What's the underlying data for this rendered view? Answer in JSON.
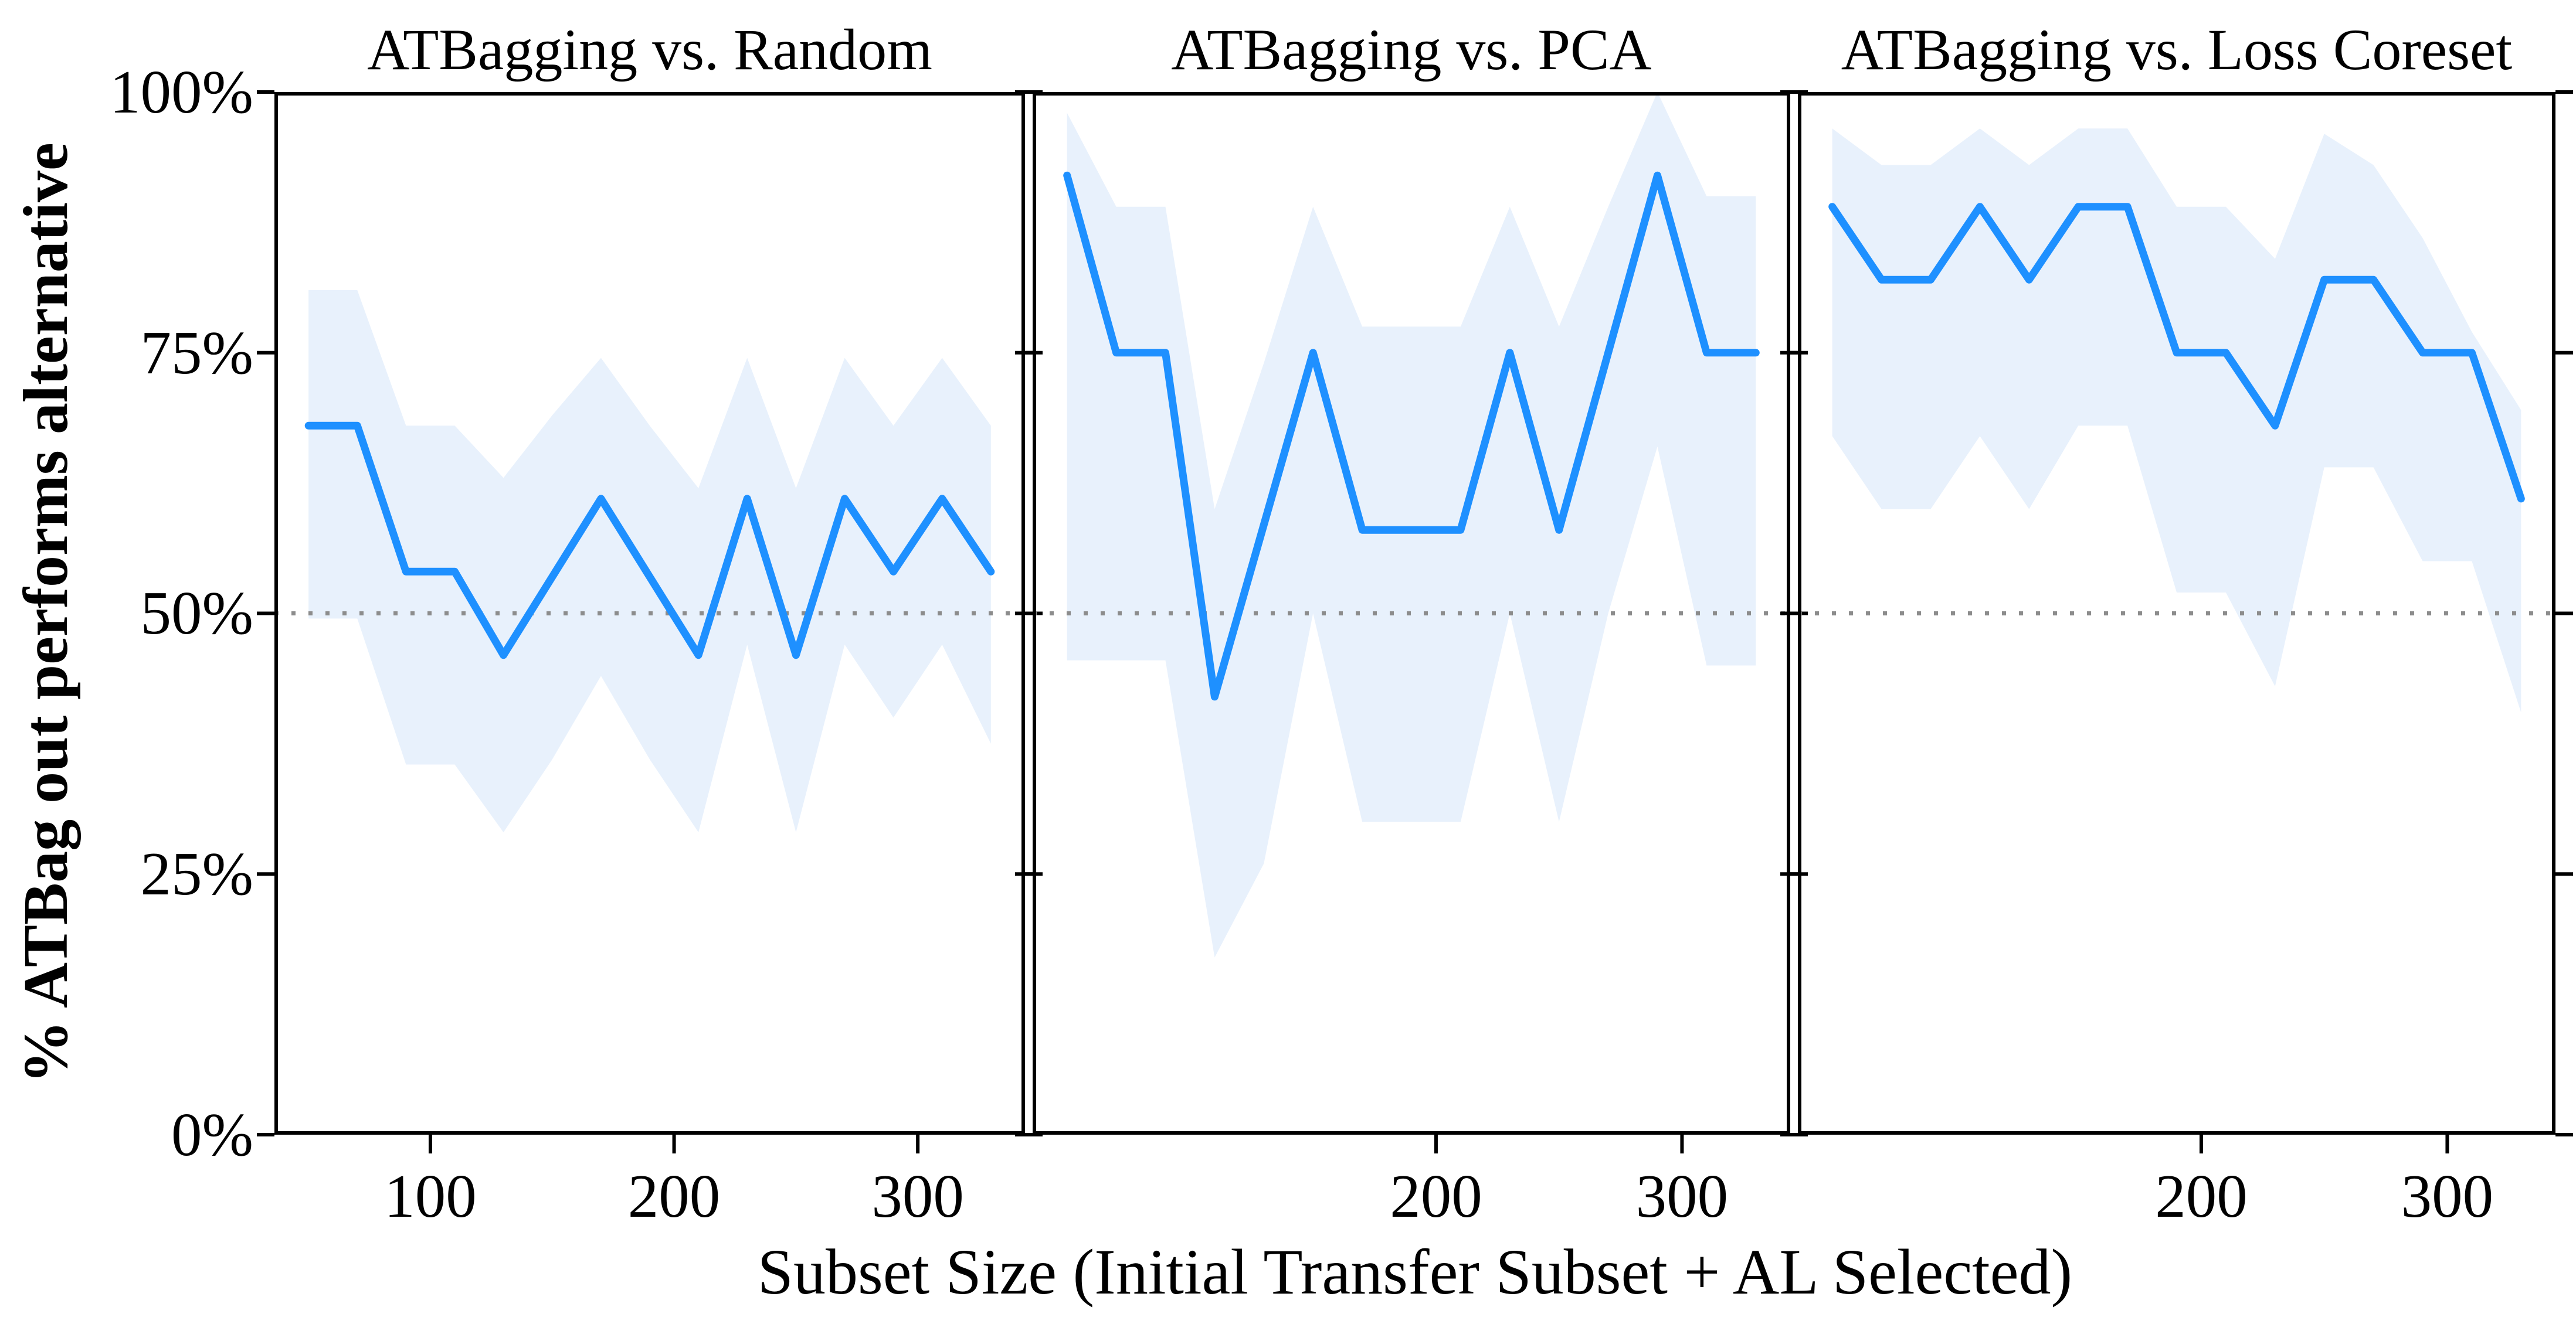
{
  "figure": {
    "y_axis_label": "% ATBag out performs alternative",
    "x_axis_label": "Subset Size (Initial Transfer Subset + AL Selected)",
    "y_tick_labels": [
      "100%",
      "75%",
      "50%",
      "25%",
      "0%"
    ],
    "y_tick_values": [
      100,
      75,
      50,
      25,
      0
    ],
    "reference_line_value": 50,
    "colors": {
      "line": "#1E90FF",
      "band": "#E8F1FC",
      "reference": "#8C8C8C",
      "axis": "#000000",
      "background": "#FFFFFF"
    }
  },
  "chart_data": [
    {
      "type": "line",
      "title": "ATBagging vs. Random",
      "xlabel": "Subset Size (Initial Transfer Subset + AL Selected)",
      "ylabel": "% ATBag out performs alternative",
      "xlim": [
        36,
        344
      ],
      "ylim": [
        0,
        100
      ],
      "x_ticks": [
        100,
        200,
        300
      ],
      "grid": false,
      "x": [
        50,
        70,
        90,
        110,
        130,
        150,
        170,
        190,
        210,
        230,
        250,
        270,
        290,
        310,
        330
      ],
      "line": [
        68,
        68,
        54,
        54,
        46,
        53.5,
        61,
        53.5,
        46,
        61,
        46,
        61,
        54,
        61,
        54
      ],
      "band_upper": [
        81,
        81,
        68,
        68,
        63,
        69,
        74.5,
        68,
        62,
        74.5,
        62,
        74.5,
        68,
        74.5,
        68
      ],
      "band_lower": [
        49.5,
        49.5,
        35.5,
        35.5,
        29,
        36,
        44,
        36,
        29,
        47,
        29,
        47,
        40,
        47,
        37.5
      ]
    },
    {
      "type": "line",
      "title": "ATBagging vs. PCA",
      "xlabel": "Subset Size (Initial Transfer Subset + AL Selected)",
      "ylabel": "% ATBag out performs alternative",
      "xlim": [
        36,
        344
      ],
      "ylim": [
        0,
        100
      ],
      "x_ticks": [
        200,
        300
      ],
      "grid": false,
      "x": [
        50,
        70,
        90,
        110,
        130,
        150,
        170,
        190,
        210,
        230,
        250,
        270,
        290,
        310,
        330
      ],
      "line": [
        92,
        75,
        75,
        42,
        58.5,
        75,
        58,
        58,
        58,
        75,
        58,
        75,
        92,
        75,
        75
      ],
      "band_upper": [
        98,
        89,
        89,
        60,
        74,
        89,
        77.5,
        77.5,
        77.5,
        89,
        77.5,
        89,
        100,
        90,
        90
      ],
      "band_lower": [
        45.5,
        45.5,
        45.5,
        17,
        26,
        50,
        30,
        30,
        30,
        50,
        30,
        50,
        66,
        45,
        45
      ]
    },
    {
      "type": "line",
      "title": "ATBagging vs. Loss Coreset",
      "xlabel": "Subset Size (Initial Transfer Subset + AL Selected)",
      "ylabel": "% ATBag out performs alternative",
      "xlim": [
        36,
        344
      ],
      "ylim": [
        0,
        100
      ],
      "x_ticks": [
        200,
        300
      ],
      "grid": false,
      "x": [
        50,
        70,
        90,
        110,
        130,
        150,
        170,
        190,
        210,
        230,
        250,
        270,
        290,
        310,
        330
      ],
      "line": [
        89,
        82,
        82,
        89,
        82,
        89,
        89,
        75,
        75,
        68,
        82,
        82,
        75,
        75,
        61
      ],
      "band_upper": [
        96.5,
        93,
        93,
        96.5,
        93,
        96.5,
        96.5,
        89,
        89,
        84,
        96,
        93,
        86,
        77,
        69.5
      ],
      "band_lower": [
        67,
        60,
        60,
        67,
        60,
        68,
        68,
        52,
        52,
        43,
        64,
        64,
        55,
        55,
        40.5
      ]
    }
  ]
}
